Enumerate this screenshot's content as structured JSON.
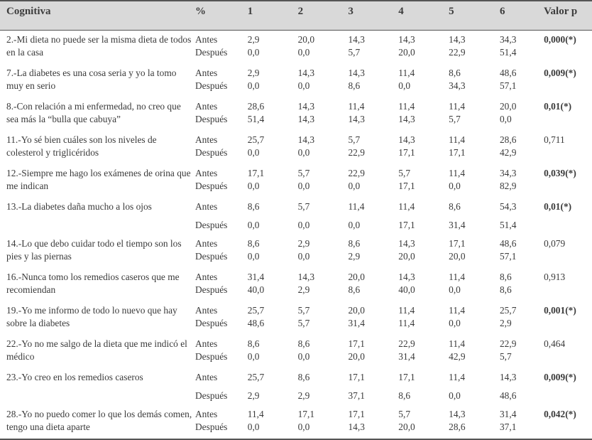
{
  "table": {
    "headers": [
      "Cognitiva",
      "%",
      "1",
      "2",
      "3",
      "4",
      "5",
      "6",
      "Valor p"
    ],
    "rows": [
      {
        "item": "2.-Mi dieta no puede ser la misma dieta de todos en la casa",
        "labels": [
          "Antes",
          "Después"
        ],
        "c1": [
          "2,9",
          "0,0"
        ],
        "c2": [
          "20,0",
          "0,0"
        ],
        "c3": [
          "14,3",
          "5,7"
        ],
        "c4": [
          "14,3",
          "20,0"
        ],
        "c5": [
          "14,3",
          "22,9"
        ],
        "c6": [
          "34,3",
          "51,4"
        ],
        "p": "0,000(*)",
        "sig": true,
        "layout": "tight"
      },
      {
        "item": "7.-La diabetes es una cosa seria y yo la tomo muy en serio",
        "labels": [
          "Antes",
          "Después"
        ],
        "c1": [
          "2,9",
          "0,0"
        ],
        "c2": [
          "14,3",
          "0,0"
        ],
        "c3": [
          "14,3",
          "8,6"
        ],
        "c4": [
          "11,4",
          "0,0"
        ],
        "c5": [
          "8,6",
          "34,3"
        ],
        "c6": [
          "48,6",
          "57,1"
        ],
        "p": "0,009(*)",
        "sig": true,
        "layout": "tight"
      },
      {
        "item": "8.-Con relación a mi enfermedad, no creo que sea más la “bulla que cabuya”",
        "labels": [
          "Antes",
          "Después"
        ],
        "c1": [
          "28,6",
          "51,4"
        ],
        "c2": [
          "14,3",
          "14,3"
        ],
        "c3": [
          "11,4",
          "14,3"
        ],
        "c4": [
          "11,4",
          "14,3"
        ],
        "c5": [
          "11,4",
          "5,7"
        ],
        "c6": [
          "20,0",
          "0,0"
        ],
        "p": "0,01(*)",
        "sig": true,
        "layout": "tight"
      },
      {
        "item": "11.-Yo sé bien cuáles son los niveles de colesterol y triglicéridos",
        "labels": [
          "Antes",
          "Después"
        ],
        "c1": [
          "25,7",
          "0,0"
        ],
        "c2": [
          "14,3",
          "0,0"
        ],
        "c3": [
          "5,7",
          "22,9"
        ],
        "c4": [
          "14,3",
          "17,1"
        ],
        "c5": [
          "11,4",
          "17,1"
        ],
        "c6": [
          "28,6",
          "42,9"
        ],
        "p": "0,711",
        "sig": false,
        "layout": "tight"
      },
      {
        "item": "12.-Siempre me hago los exámenes de orina que me indican",
        "labels": [
          "Antes",
          "Después"
        ],
        "c1": [
          "17,1",
          "0,0"
        ],
        "c2": [
          "5,7",
          "0,0"
        ],
        "c3": [
          "22,9",
          "0,0"
        ],
        "c4": [
          "5,7",
          "17,1"
        ],
        "c5": [
          "11,4",
          "0,0"
        ],
        "c6": [
          "34,3",
          "82,9"
        ],
        "p": "0,039(*)",
        "sig": true,
        "layout": "tight"
      },
      {
        "item": "13.-La diabetes daña mucho a los ojos",
        "labels": [
          "Antes",
          "Después"
        ],
        "c1": [
          "8,6",
          "0,0"
        ],
        "c2": [
          "5,7",
          "0,0"
        ],
        "c3": [
          "11,4",
          "0,0"
        ],
        "c4": [
          "11,4",
          "17,1"
        ],
        "c5": [
          "8,6",
          "31,4"
        ],
        "c6": [
          "54,3",
          "51,4"
        ],
        "p": "0,01(*)",
        "sig": true,
        "layout": "spread"
      },
      {
        "item": "14.-Lo que debo cuidar todo el tiempo son los pies y las piernas",
        "labels": [
          "Antes",
          "Después"
        ],
        "c1": [
          "8,6",
          "0,0"
        ],
        "c2": [
          "2,9",
          "0,0"
        ],
        "c3": [
          "8,6",
          "2,9"
        ],
        "c4": [
          "14,3",
          "20,0"
        ],
        "c5": [
          "17,1",
          "20,0"
        ],
        "c6": [
          "48,6",
          "57,1"
        ],
        "p": "0,079",
        "sig": false,
        "layout": "tight"
      },
      {
        "item": "16.-Nunca tomo los remedios caseros que me recomiendan",
        "labels": [
          "Antes",
          "Después"
        ],
        "c1": [
          "31,4",
          "40,0"
        ],
        "c2": [
          "14,3",
          "2,9"
        ],
        "c3": [
          "20,0",
          "8,6"
        ],
        "c4": [
          "14,3",
          "40,0"
        ],
        "c5": [
          "11,4",
          "0,0"
        ],
        "c6": [
          "8,6",
          "8,6"
        ],
        "p": "0,913",
        "sig": false,
        "layout": "tight"
      },
      {
        "item": "19.-Yo me informo de todo lo nuevo que hay sobre la diabetes",
        "labels": [
          "Antes",
          "Después"
        ],
        "c1": [
          "25,7",
          "48,6"
        ],
        "c2": [
          "5,7",
          "5,7"
        ],
        "c3": [
          "20,0",
          "31,4"
        ],
        "c4": [
          "11,4",
          "11,4"
        ],
        "c5": [
          "11,4",
          "0,0"
        ],
        "c6": [
          "25,7",
          "2,9"
        ],
        "p": "0,001(*)",
        "sig": true,
        "layout": "tight"
      },
      {
        "item": "22.-Yo no me salgo de la dieta que me indicó el médico",
        "labels": [
          "Antes",
          "Después"
        ],
        "c1": [
          "8,6",
          "0,0"
        ],
        "c2": [
          "8,6",
          "0,0"
        ],
        "c3": [
          "17,1",
          "20,0"
        ],
        "c4": [
          "22,9",
          "31,4"
        ],
        "c5": [
          "11,4",
          "42,9"
        ],
        "c6": [
          "22,9",
          "5,7"
        ],
        "p": "0,464",
        "sig": false,
        "layout": "tight"
      },
      {
        "item": "23.-Yo creo en los remedios caseros",
        "labels": [
          "Antes",
          "Después"
        ],
        "c1": [
          "25,7",
          "2,9"
        ],
        "c2": [
          "8,6",
          "2,9"
        ],
        "c3": [
          "17,1",
          "37,1"
        ],
        "c4": [
          "17,1",
          "8,6"
        ],
        "c5": [
          "11,4",
          "0,0"
        ],
        "c6": [
          "14,3",
          "48,6"
        ],
        "p": "0,009(*)",
        "sig": true,
        "layout": "spread"
      },
      {
        "item": "28.-Yo no puedo comer lo que los demás comen, tengo una dieta aparte",
        "labels": [
          "Antes",
          "Después"
        ],
        "c1": [
          "11,4",
          "0,0"
        ],
        "c2": [
          "17,1",
          "0,0"
        ],
        "c3": [
          "17,1",
          "14,3"
        ],
        "c4": [
          "5,7",
          "20,0"
        ],
        "c5": [
          "14,3",
          "28,6"
        ],
        "c6": [
          "31,4",
          "37,1"
        ],
        "p": "0,042(*)",
        "sig": true,
        "layout": "tight"
      }
    ]
  }
}
